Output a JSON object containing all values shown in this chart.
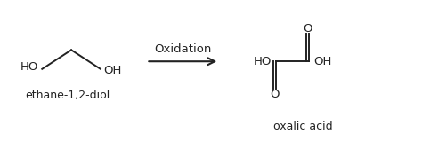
{
  "bg_color": "#ffffff",
  "text_color": "#222222",
  "arrow_label": "Oxidation",
  "left_label": "ethane-1,2-diol",
  "right_label": "oxalic acid",
  "figsize": [
    4.74,
    1.77
  ],
  "dpi": 100,
  "font_size": 9.5,
  "label_font_size": 9,
  "lw": 1.4
}
